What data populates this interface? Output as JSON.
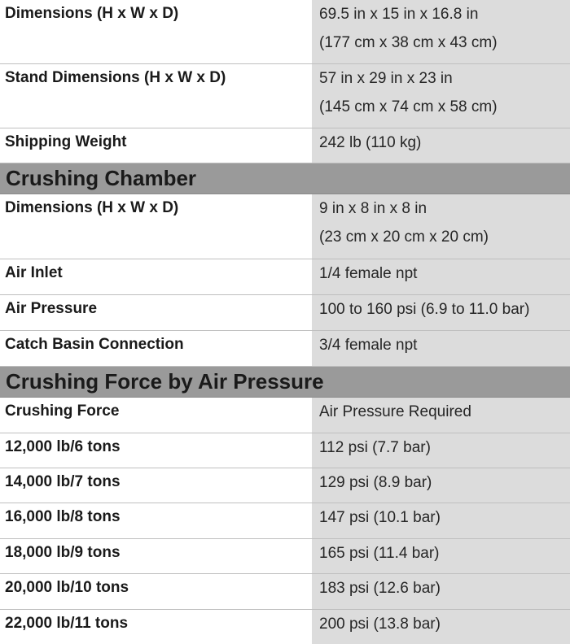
{
  "general": {
    "dimensions": {
      "label": "Dimensions (H x W x D)",
      "value_line1": "69.5 in x 15 in x 16.8 in",
      "value_line2": "(177 cm x 38 cm x 43 cm)"
    },
    "stand_dimensions": {
      "label": "Stand Dimensions (H x W x D)",
      "value_line1": "57 in x 29 in x 23 in",
      "value_line2": "(145 cm x 74 cm x 58 cm)"
    },
    "shipping_weight": {
      "label": "Shipping Weight",
      "value": "242 lb (110 kg)"
    }
  },
  "crushing_chamber": {
    "heading": "Crushing Chamber",
    "dimensions": {
      "label": "Dimensions (H x W x D)",
      "value_line1": "9 in x 8 in x 8 in",
      "value_line2": "(23 cm x 20 cm x 20 cm)"
    },
    "air_inlet": {
      "label": "Air Inlet",
      "value": "1/4 female npt"
    },
    "air_pressure": {
      "label": "Air Pressure",
      "value": "100 to 160 psi (6.9 to 11.0 bar)"
    },
    "catch_basin": {
      "label": "Catch Basin Connection",
      "value": "3/4 female npt"
    }
  },
  "crushing_force": {
    "heading": "Crushing Force by Air Pressure",
    "header": {
      "label": "Crushing Force",
      "value": "Air Pressure Required"
    },
    "rows": [
      {
        "force": "12,000 lb/6 tons",
        "pressure": "112 psi (7.7 bar)"
      },
      {
        "force": "14,000 lb/7 tons",
        "pressure": "129 psi (8.9 bar)"
      },
      {
        "force": "16,000 lb/8 tons",
        "pressure": "147 psi (10.1 bar)"
      },
      {
        "force": "18,000 lb/9 tons",
        "pressure": "165 psi (11.4 bar)"
      },
      {
        "force": "20,000 lb/10 tons",
        "pressure": "183 psi (12.6 bar)"
      },
      {
        "force": "22,000 lb/11 tons",
        "pressure": "200 psi (13.8 bar)"
      }
    ]
  }
}
